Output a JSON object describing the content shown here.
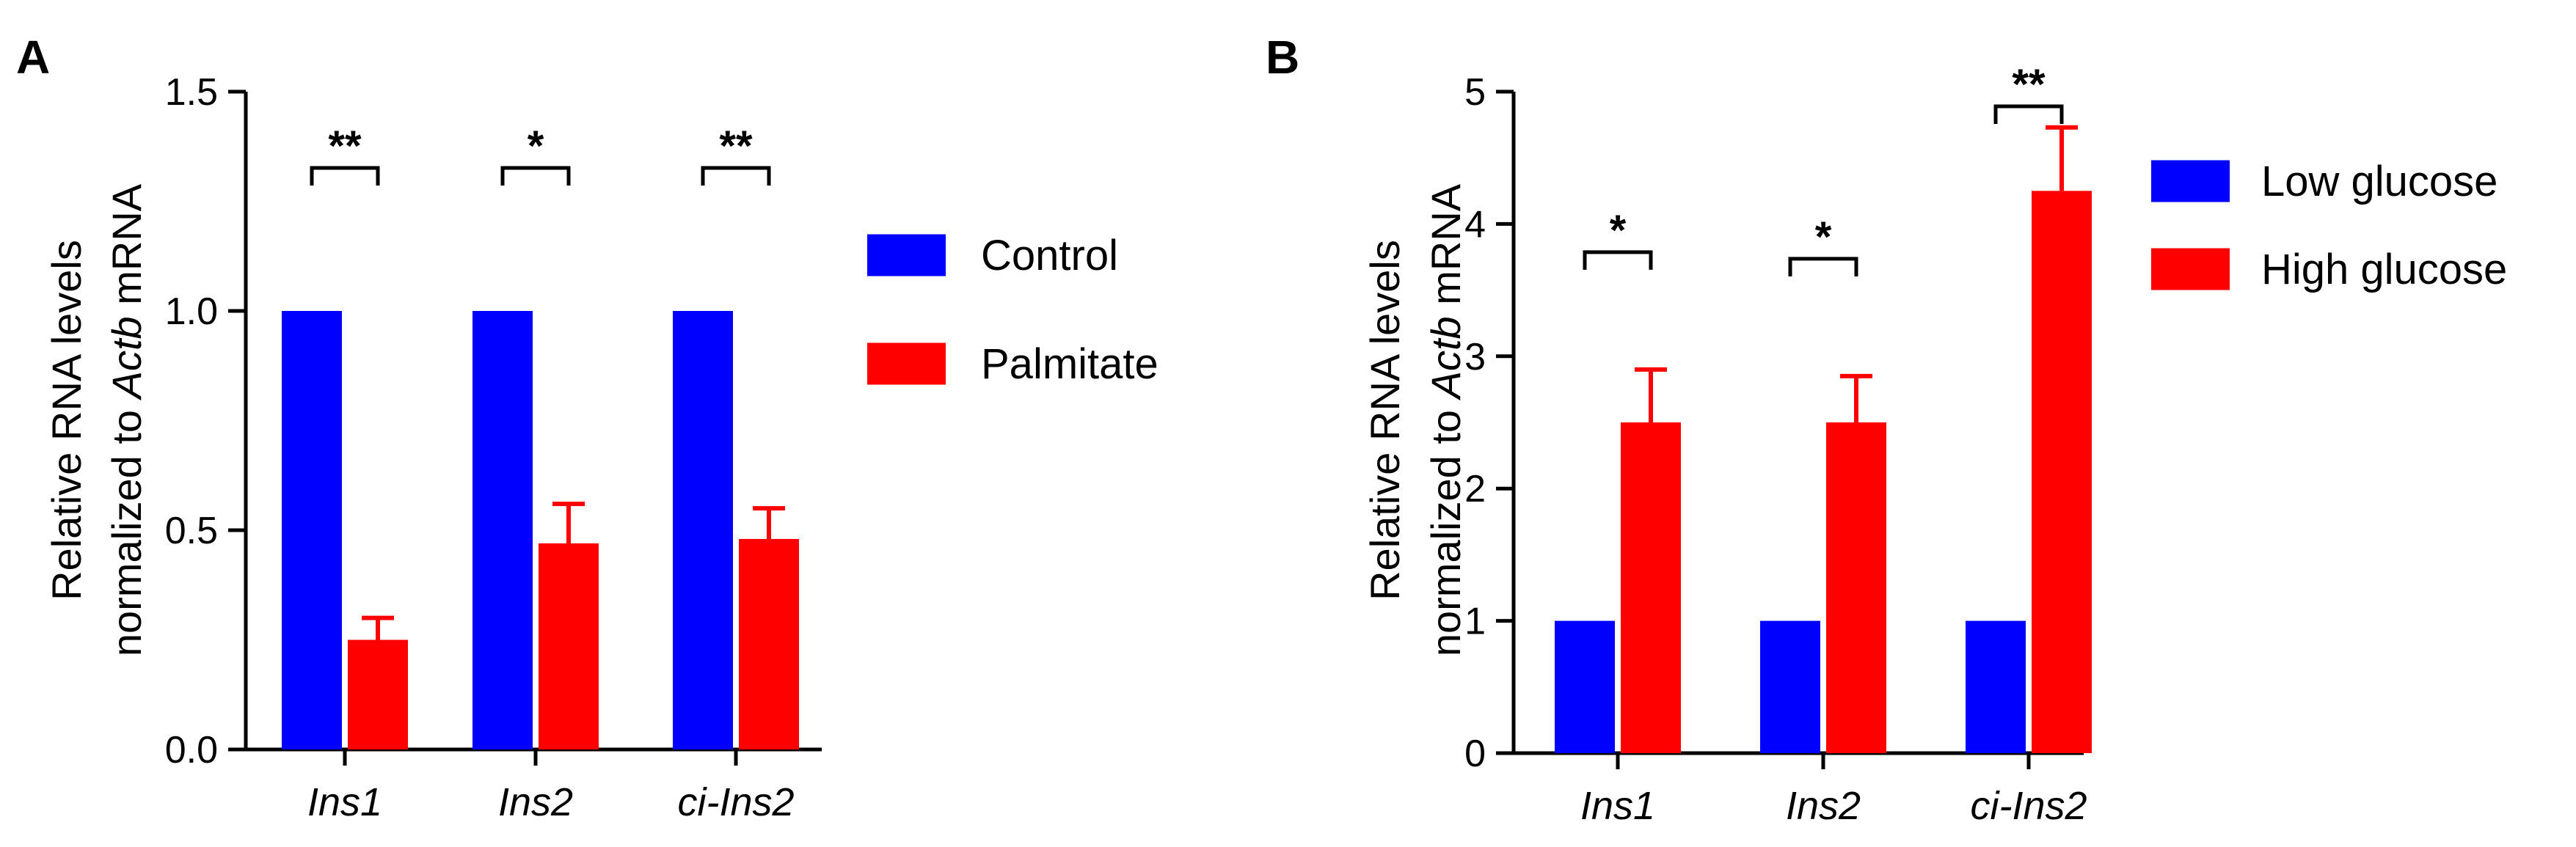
{
  "chart_data": [
    {
      "panel": "A",
      "type": "bar",
      "categories": [
        "Ins1",
        "Ins2",
        "ci-Ins2"
      ],
      "series": [
        {
          "name": "Control",
          "color": "#0000ff",
          "values": [
            1.0,
            1.0,
            1.0
          ],
          "errors": [
            0,
            0,
            0
          ]
        },
        {
          "name": "Palmitate",
          "color": "#ff0000",
          "values": [
            0.25,
            0.47,
            0.48
          ],
          "errors": [
            0.05,
            0.09,
            0.07
          ]
        }
      ],
      "significance": [
        "**",
        "*",
        "**"
      ],
      "ylabel_line1": "Relative RNA levels",
      "ylabel_line2_prefix": "normalized to ",
      "ylabel_line2_italic": "Actb",
      "ylabel_line2_suffix": " mRNA",
      "ylim": [
        0,
        1.5
      ],
      "yticks": [
        0.0,
        0.5,
        1.0,
        1.5
      ],
      "ytick_labels": [
        "0.0",
        "0.5",
        "1.0",
        "1.5"
      ],
      "legend_position": "right"
    },
    {
      "panel": "B",
      "type": "bar",
      "categories": [
        "Ins1",
        "Ins2",
        "ci-Ins2"
      ],
      "series": [
        {
          "name": "Low glucose",
          "color": "#0000ff",
          "values": [
            1.0,
            1.0,
            1.0
          ],
          "errors": [
            0,
            0,
            0
          ]
        },
        {
          "name": "High glucose",
          "color": "#ff0000",
          "values": [
            2.5,
            2.5,
            4.25
          ],
          "errors": [
            0.4,
            0.35,
            0.48
          ]
        }
      ],
      "significance": [
        "*",
        "*",
        "**"
      ],
      "ylabel_line1": "Relative RNA levels",
      "ylabel_line2_prefix": "normalized to ",
      "ylabel_line2_italic": "Actb",
      "ylabel_line2_suffix": " mRNA",
      "ylim": [
        0,
        5
      ],
      "yticks": [
        0,
        1,
        2,
        3,
        4,
        5
      ],
      "ytick_labels": [
        "0",
        "1",
        "2",
        "3",
        "4",
        "5"
      ],
      "legend_position": "top-right"
    }
  ]
}
